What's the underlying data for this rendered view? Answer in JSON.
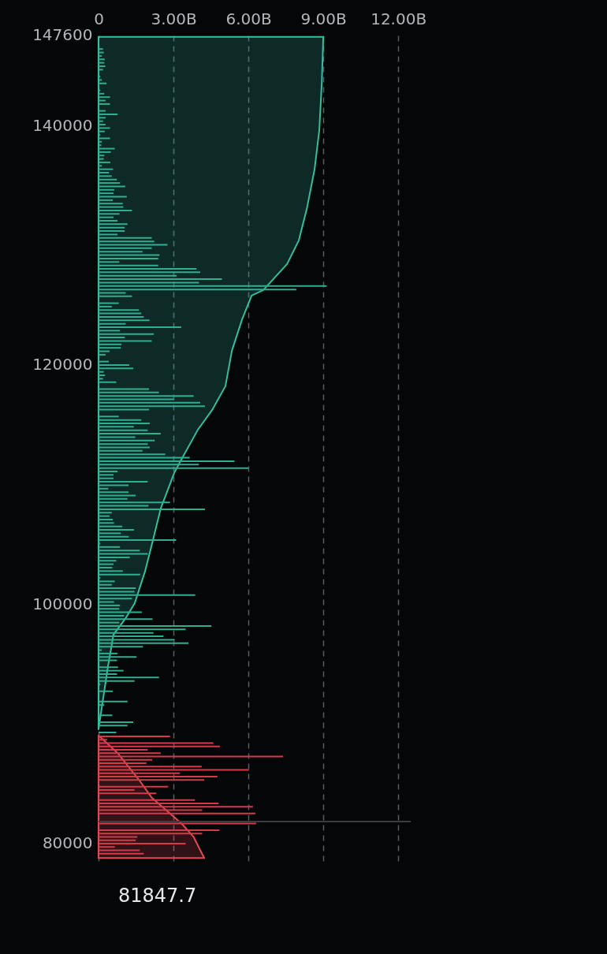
{
  "chart_data": {
    "type": "bar",
    "orientation": "horizontal",
    "grid": "x",
    "xlim": [
      0,
      12.5
    ],
    "xticks": [
      0,
      {
        "value": 3,
        "label": "3.00B"
      },
      {
        "value": 6,
        "label": "6.00B"
      },
      {
        "value": 9,
        "label": "9.00B"
      },
      {
        "value": 12,
        "label": "12.00B"
      }
    ],
    "ylim": [
      78550,
      147600
    ],
    "yticks": [
      80000,
      100000,
      120000,
      140000,
      147600
    ],
    "ref_lines": [
      {
        "axis": "y",
        "value": 81847.7,
        "color": "#3a3d42"
      }
    ],
    "annotations": [
      "81847.7"
    ],
    "series": [
      {
        "type": "area",
        "color": "#34bf9e",
        "x": [
          89555,
          94828,
          97464,
          98782,
          100100,
          102736,
          105372,
          108008,
          110973,
          111962,
          114598,
          116245,
          118222,
          121188,
          123824,
          125801,
          126262,
          128437,
          130414,
          133050,
          136345,
          139640,
          143594,
          147416
        ],
        "values": [
          0,
          0.38,
          0.6,
          1.07,
          1.45,
          1.86,
          2.18,
          2.49,
          3.03,
          3.28,
          3.98,
          4.55,
          5.08,
          5.34,
          5.75,
          6.13,
          6.6,
          7.55,
          8.02,
          8.34,
          8.65,
          8.84,
          8.94,
          9.0
        ]
      },
      {
        "type": "area",
        "color": "#e04a57",
        "x": [
          89048,
          87579,
          85384,
          83842,
          82524,
          81648,
          80547,
          78794
        ],
        "values": [
          0,
          0.76,
          1.6,
          2.13,
          2.86,
          3.34,
          3.81,
          4.23
        ]
      },
      {
        "color": "#2fae90",
        "x": [
          146400,
          146113,
          145826,
          145539,
          145252,
          144965,
          144678,
          144391,
          144104,
          143817,
          143530,
          143243,
          142956,
          142669,
          142382,
          142095,
          141808,
          141521,
          141234,
          140947,
          140660,
          140373,
          140086,
          139799,
          139512,
          139225,
          138938,
          138651,
          138364,
          138077,
          137790,
          137503,
          137216,
          136929,
          136642,
          136355,
          136068,
          135781,
          135494,
          135207,
          134920,
          134633,
          134346,
          134059,
          133772,
          133485,
          133198,
          132911,
          132624,
          132337,
          132050,
          131763,
          131476,
          131189,
          130902,
          130615,
          130328,
          130041,
          129754,
          129467,
          129180,
          128893,
          128606,
          128319,
          128032,
          127745,
          127458,
          127171,
          126884,
          126597,
          126310,
          126023,
          125736,
          125162,
          124875,
          124588,
          124301,
          124014,
          123727,
          123440,
          123153,
          122866,
          122579,
          122292,
          122005,
          121718,
          121431,
          121144,
          120857,
          120283,
          119996,
          119709,
          119422,
          119135,
          118848,
          118561,
          118274,
          117987,
          117700,
          117413,
          117126,
          116839,
          116552,
          116265,
          115691,
          115404,
          115117,
          114830,
          114543,
          114256,
          113969,
          113682,
          113395,
          113108,
          112821,
          112534,
          112247,
          111960,
          111673,
          111386,
          111099,
          110812,
          110525,
          110238,
          109951,
          109664,
          109377,
          109090,
          108803,
          108516,
          108229,
          107942,
          107655,
          107368,
          107081,
          106794,
          106507,
          106220,
          105933,
          105646,
          105359,
          105072,
          104785,
          104498,
          104211,
          103924,
          103637,
          103350,
          103063,
          102776,
          102489,
          102202,
          101915,
          101628,
          101341,
          101054,
          100767,
          100480,
          100193,
          99906,
          99619,
          99332,
          99045,
          98758,
          98471,
          98184,
          97897,
          97610,
          97323,
          97036,
          96749,
          96462,
          96175,
          95888,
          95601,
          95314,
          94740,
          94453,
          94166,
          93879,
          93592,
          93305,
          92731,
          91870,
          91583,
          90722,
          90148,
          89861,
          89287
        ],
        "values": [
          0.18,
          0.21,
          0.13,
          0.25,
          0.23,
          0.27,
          0.18,
          0.04,
          0.07,
          0.13,
          0.32,
          0.04,
          0.07,
          0.23,
          0.46,
          0.28,
          0.46,
          0.02,
          0.28,
          0.76,
          0.28,
          0.18,
          0.28,
          0.46,
          0.25,
          0.07,
          0.46,
          0.13,
          0.11,
          0.65,
          0.49,
          0.23,
          0.21,
          0.47,
          0.13,
          0.58,
          0.42,
          0.53,
          0.73,
          0.86,
          1.07,
          0.63,
          0.6,
          1.13,
          0.57,
          0.97,
          0.99,
          1.34,
          0.84,
          0.6,
          0.76,
          1.16,
          1.05,
          1.05,
          0.76,
          2.13,
          2.23,
          2.76,
          2.13,
          1.76,
          2.44,
          2.39,
          0.83,
          2.39,
          3.92,
          4.07,
          3.13,
          4.94,
          4.02,
          9.13,
          7.92,
          1.09,
          1.34,
          0.81,
          0.53,
          1.62,
          1.71,
          1.81,
          2.04,
          1.09,
          3.31,
          0.86,
          2.21,
          1.05,
          2.13,
          0.92,
          0.89,
          0.44,
          0.28,
          0.41,
          1.23,
          1.39,
          0.21,
          0.26,
          0.18,
          0.71,
          0.02,
          2.02,
          2.42,
          3.81,
          3.02,
          4.07,
          4.26,
          2.02,
          0.81,
          1.71,
          2.05,
          1.41,
          1.97,
          2.49,
          1.47,
          2.25,
          1.97,
          2.05,
          1.76,
          2.67,
          3.65,
          5.44,
          4.02,
          6.0,
          0.76,
          0.6,
          0.6,
          1.97,
          1.2,
          0.39,
          1.2,
          1.49,
          1.16,
          2.86,
          2.0,
          4.26,
          0.53,
          0.44,
          0.57,
          0.62,
          0.95,
          1.42,
          0.89,
          1.21,
          3.11,
          0.07,
          0.86,
          1.65,
          1.97,
          1.25,
          0.71,
          0.6,
          0.55,
          0.97,
          1.67,
          0.07,
          0.65,
          0.53,
          1.49,
          1.44,
          3.87,
          1.34,
          0.62,
          0.86,
          0.83,
          1.73,
          1.02,
          2.16,
          0.83,
          4.52,
          3.49,
          2.2,
          2.6,
          3.05,
          3.6,
          1.78,
          0.13,
          0.76,
          1.52,
          0.74,
          0.78,
          1.0,
          0.74,
          2.42,
          1.44,
          0.07,
          0.57,
          1.16,
          0.23,
          0.55,
          1.39,
          1.16,
          0.71
        ]
      },
      {
        "color": "#d63a48",
        "x": [
          88960,
          88680,
          88400,
          88120,
          87840,
          87560,
          87280,
          87000,
          86720,
          86440,
          86160,
          85880,
          85600,
          85320,
          84760,
          84480,
          84200,
          83640,
          83360,
          83080,
          82800,
          82520,
          81680,
          81120,
          80840,
          80560,
          80280,
          80000,
          79720,
          79440,
          79160,
          78880
        ],
        "values": [
          2.86,
          0.34,
          4.6,
          4.86,
          1.97,
          2.49,
          7.39,
          2.15,
          1.92,
          4.13,
          6.02,
          3.26,
          4.76,
          4.23,
          2.79,
          1.44,
          2.31,
          3.86,
          4.81,
          6.18,
          4.15,
          6.28,
          6.31,
          4.84,
          4.15,
          1.55,
          1.49,
          3.49,
          0.65,
          1.65,
          1.81,
          0.02
        ]
      }
    ]
  }
}
